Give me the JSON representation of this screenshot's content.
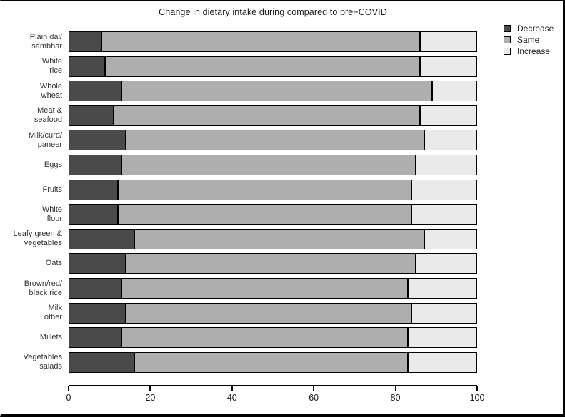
{
  "frame": {
    "background": "#ffffff",
    "border_color": "#000000"
  },
  "chart_data": {
    "type": "bar",
    "orientation": "horizontal",
    "stacked": true,
    "title": "Change in dietary intake during compared to pre−COVID",
    "categories": [
      "Plain dal/\nsambhar",
      "White\nrice",
      "Whole\nwheat",
      "Meat &\nseafood",
      "Milk/curd/\npaneer",
      "Eggs",
      "Fruits",
      "White\nflour",
      "Leafy green &\nvegetables",
      "Oats",
      "Brown/red/\nblack rice",
      "Milk\nother",
      "Millets",
      "Vegetables\nsalads"
    ],
    "series": [
      {
        "name": "Decrease",
        "color": "#4a4a4a",
        "values": [
          8,
          9,
          13,
          11,
          14,
          13,
          12,
          12,
          16,
          14,
          13,
          14,
          13,
          16
        ]
      },
      {
        "name": "Same",
        "color": "#aeaeae",
        "values": [
          78,
          77,
          76,
          75,
          73,
          72,
          72,
          72,
          71,
          71,
          70,
          70,
          70,
          67
        ]
      },
      {
        "name": "Increase",
        "color": "#eaeaea",
        "values": [
          14,
          14,
          11,
          14,
          13,
          15,
          16,
          16,
          13,
          15,
          17,
          16,
          17,
          17
        ]
      }
    ],
    "xlabel": "",
    "ylabel": "",
    "xlim": [
      0,
      100
    ],
    "x_ticks": [
      0,
      20,
      40,
      60,
      80,
      100
    ],
    "grid": false,
    "legend_position": "top-right",
    "legend_entries": [
      "Decrease",
      "Same",
      "Increase"
    ]
  }
}
